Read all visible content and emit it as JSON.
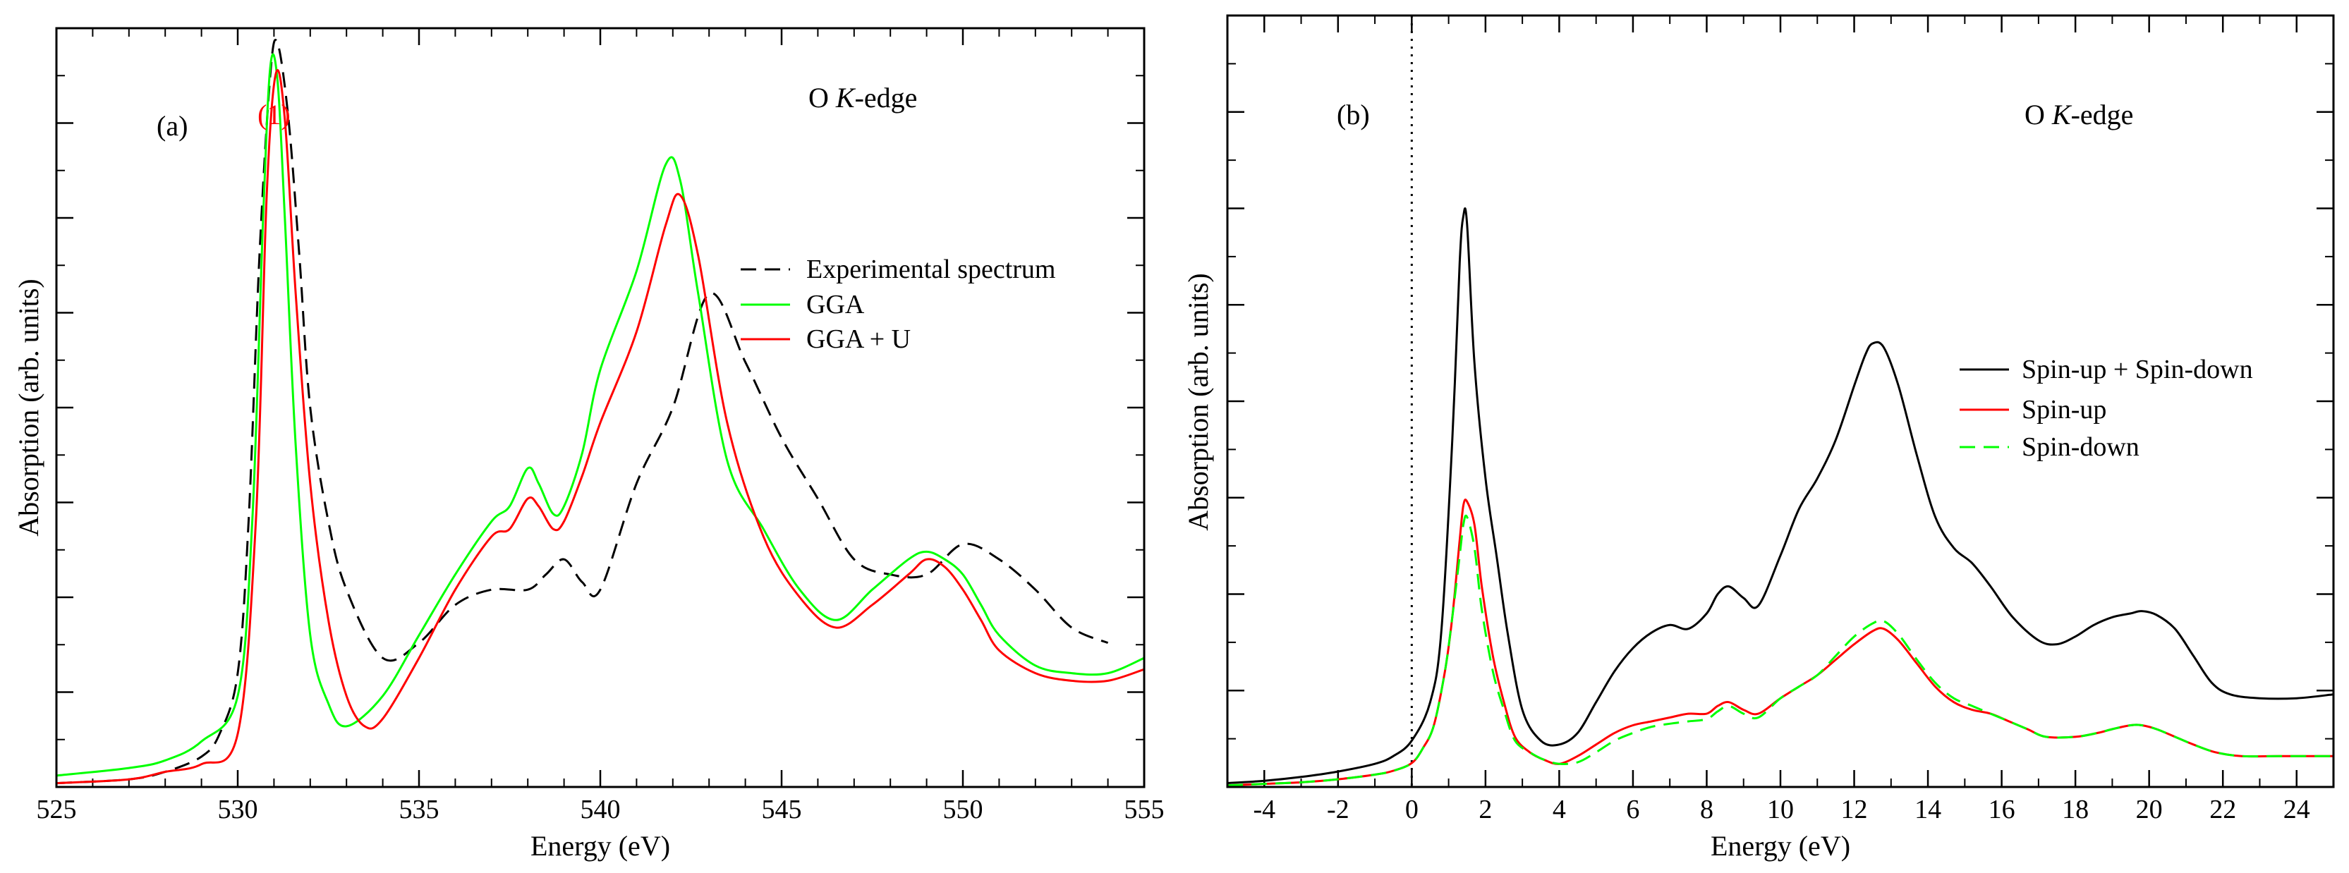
{
  "chart_data": [
    {
      "type": "line",
      "panel_label": "(a)",
      "annotation": "O K-edge",
      "annotation_parts": [
        "O ",
        "K",
        "-edge"
      ],
      "peak_label": "(1)",
      "peak_label_x": 531.0,
      "xlabel": "Energy (eV)",
      "ylabel": "Absorption (arb. units)",
      "xlim": [
        525,
        555
      ],
      "ylim": [
        0,
        100
      ],
      "x_ticks": [
        525,
        530,
        535,
        540,
        545,
        550,
        555
      ],
      "x_tick_labels": [
        "525",
        "530",
        "535",
        "540",
        "545",
        "550",
        "555"
      ],
      "y_tick_labels": [],
      "legend_position": "upper-right",
      "colors": {
        "peak_label": "#ff0000"
      },
      "series": [
        {
          "name": "Experimental spectrum",
          "color": "#000000",
          "dash": "dashed",
          "x": [
            525,
            527,
            528,
            529,
            529.5,
            530,
            530.3,
            530.6,
            530.9,
            531.1,
            531.4,
            531.7,
            532,
            532.5,
            533,
            534,
            535,
            536,
            537,
            538,
            538.5,
            539,
            539.5,
            540,
            541,
            542,
            543,
            544,
            545,
            546,
            547,
            548,
            549,
            550,
            551,
            552,
            553,
            554
          ],
          "y": [
            0.5,
            1,
            2,
            4,
            7,
            15,
            35,
            70,
            94,
            98,
            88,
            70,
            50,
            35,
            26,
            17,
            19,
            24,
            26,
            26,
            28,
            30,
            27,
            26,
            40,
            50,
            65,
            56,
            46,
            38,
            30,
            28,
            28,
            32,
            30,
            26,
            21,
            19
          ]
        },
        {
          "name": "GGA",
          "color": "#00ff00",
          "dash": "solid",
          "x": [
            525,
            527,
            528,
            529,
            530,
            530.4,
            530.7,
            530.9,
            531.1,
            531.3,
            531.6,
            532,
            532.5,
            533,
            534,
            535,
            536,
            537,
            537.5,
            538,
            538.3,
            538.7,
            539,
            539.5,
            540,
            541,
            541.8,
            542.2,
            542.7,
            543.5,
            544.5,
            545.5,
            546.5,
            547.5,
            548.5,
            549,
            549.5,
            550,
            550.5,
            551,
            552,
            553,
            554,
            555
          ],
          "y": [
            1.5,
            2.5,
            3.5,
            6,
            12,
            35,
            75,
            95,
            93,
            75,
            45,
            20,
            11,
            8,
            12,
            20,
            28,
            35,
            37,
            42,
            40,
            36,
            37,
            44,
            55,
            68,
            82,
            80,
            65,
            43,
            34,
            26,
            22,
            26,
            30,
            31,
            30,
            28,
            24,
            20,
            16,
            15,
            15,
            17
          ]
        },
        {
          "name": "GGA + U",
          "color": "#ff0000",
          "dash": "solid",
          "x": [
            525,
            527,
            528,
            529,
            530,
            530.5,
            530.8,
            531.05,
            531.3,
            531.6,
            532,
            532.5,
            533,
            533.5,
            534,
            535,
            536,
            537,
            537.5,
            538,
            538.3,
            538.7,
            539,
            539.5,
            540,
            541,
            541.8,
            542.2,
            542.7,
            543.5,
            544.5,
            545.5,
            546.5,
            547.5,
            548.5,
            549,
            549.5,
            550,
            550.5,
            551,
            552,
            553,
            554,
            555
          ],
          "y": [
            0.5,
            1,
            2,
            3,
            7,
            35,
            78,
            94,
            88,
            65,
            40,
            22,
            12,
            8,
            9,
            17,
            26,
            33,
            34,
            38,
            37,
            34,
            35,
            41,
            48,
            60,
            74,
            78,
            70,
            48,
            33,
            25,
            21,
            24,
            28,
            30,
            29,
            26,
            22,
            18,
            15,
            14,
            14,
            15.5
          ]
        }
      ]
    },
    {
      "type": "line",
      "panel_label": "(b)",
      "annotation": "O K-edge",
      "annotation_parts": [
        "O ",
        "K",
        "-edge"
      ],
      "xlabel": "Energy (eV)",
      "ylabel": "Absorption (arb. units)",
      "xlim": [
        -5,
        25
      ],
      "ylim": [
        0,
        100
      ],
      "x_ticks": [
        -4,
        -2,
        0,
        2,
        4,
        6,
        8,
        10,
        12,
        14,
        16,
        18,
        20,
        22,
        24
      ],
      "x_tick_labels": [
        "-4",
        "-2",
        "0",
        "2",
        "4",
        "6",
        "8",
        "10",
        "12",
        "14",
        "16",
        "18",
        "20",
        "22",
        "24"
      ],
      "y_tick_labels": [],
      "fermi_level_x": 0,
      "legend_position": "right",
      "series": [
        {
          "name": "Spin-up + Spin-down",
          "color": "#000000",
          "dash": "solid",
          "x": [
            -5,
            -4,
            -3,
            -2,
            -1,
            -0.5,
            0,
            0.5,
            0.8,
            1.1,
            1.3,
            1.4,
            1.5,
            1.7,
            2.0,
            2.3,
            2.6,
            3.0,
            3.5,
            4.0,
            4.5,
            5,
            5.5,
            6,
            6.5,
            7,
            7.5,
            8,
            8.3,
            8.6,
            9,
            9.4,
            10,
            10.5,
            11,
            11.5,
            12,
            12.3,
            12.5,
            12.8,
            13.2,
            13.7,
            14.2,
            14.7,
            15.2,
            15.7,
            16.3,
            17,
            17.5,
            18,
            18.5,
            19,
            19.5,
            19.8,
            20.2,
            20.7,
            21.2,
            21.7,
            22.2,
            23,
            24,
            25
          ],
          "y": [
            0.5,
            0.8,
            1.3,
            2,
            3,
            4,
            6,
            11,
            20,
            45,
            68,
            74,
            73,
            55,
            40,
            30,
            20,
            10,
            6,
            5.5,
            7,
            11,
            15,
            18,
            20,
            21,
            20.5,
            22.5,
            25,
            26,
            24.5,
            23.5,
            30,
            36,
            40,
            45,
            52,
            56,
            57.5,
            57,
            52,
            43,
            35,
            31,
            29,
            26,
            22,
            19,
            18.5,
            19.5,
            21,
            22,
            22.5,
            22.8,
            22.3,
            20.5,
            17,
            13.5,
            12,
            11.5,
            11.5,
            12
          ]
        },
        {
          "name": "Spin-up",
          "color": "#ff0000",
          "dash": "solid",
          "x": [
            -5,
            -4,
            -3,
            -2,
            -1,
            -0.5,
            0,
            0.3,
            0.6,
            0.9,
            1.1,
            1.3,
            1.4,
            1.5,
            1.7,
            1.9,
            2.2,
            2.5,
            2.8,
            3.2,
            3.6,
            4,
            4.5,
            5,
            5.5,
            6,
            6.5,
            7,
            7.5,
            8,
            8.3,
            8.6,
            9,
            9.4,
            10,
            10.5,
            11,
            11.5,
            12,
            12.5,
            12.8,
            13.2,
            13.7,
            14.2,
            14.7,
            15.2,
            15.7,
            16.2,
            16.7,
            17.2,
            18,
            18.6,
            19,
            19.5,
            19.8,
            20.2,
            20.7,
            21.2,
            21.8,
            22.5,
            23.5,
            25
          ],
          "y": [
            0.2,
            0.4,
            0.6,
            1,
            1.6,
            2.1,
            3.1,
            5,
            8,
            15,
            22,
            32,
            36.5,
            37,
            34,
            26,
            17,
            11,
            6.5,
            4.5,
            3.5,
            3,
            4,
            5.5,
            7,
            8,
            8.5,
            9,
            9.5,
            9.5,
            10.5,
            11,
            10,
            9.5,
            11.5,
            13,
            14.5,
            16.5,
            18.5,
            20.2,
            20.5,
            19,
            16,
            13,
            11,
            10,
            9.5,
            8.5,
            7.5,
            6.5,
            6.5,
            7,
            7.5,
            8,
            8,
            7.5,
            6.5,
            5.5,
            4.5,
            4,
            4,
            4
          ]
        },
        {
          "name": "Spin-down",
          "color": "#00ff00",
          "dash": "dashed",
          "x": [
            -5,
            -4,
            -3,
            -2,
            -1,
            -0.5,
            0,
            0.3,
            0.6,
            0.9,
            1.1,
            1.3,
            1.4,
            1.5,
            1.7,
            1.9,
            2.2,
            2.5,
            2.8,
            3.2,
            3.6,
            4,
            4.5,
            5,
            5.5,
            6,
            6.5,
            7,
            7.5,
            8,
            8.3,
            8.6,
            9,
            9.4,
            10,
            10.5,
            11,
            11.5,
            12,
            12.5,
            12.8,
            13.2,
            13.7,
            14.2,
            14.7,
            15.2,
            15.7,
            16.2,
            16.7,
            17.2,
            18,
            18.6,
            19,
            19.5,
            19.8,
            20.2,
            20.7,
            21.2,
            21.8,
            22.5,
            23.5,
            25
          ],
          "y": [
            0.2,
            0.4,
            0.6,
            1,
            1.6,
            2.1,
            3.1,
            5,
            8,
            15,
            22,
            30,
            34,
            35,
            31,
            23,
            15,
            10,
            6,
            4.5,
            3.5,
            3,
            3.2,
            4.5,
            6,
            7,
            7.8,
            8.2,
            8.5,
            8.8,
            9.8,
            10.5,
            9.5,
            9,
            11.5,
            13,
            14.5,
            17,
            19.5,
            21.2,
            21.5,
            19.8,
            16.5,
            13.5,
            11.5,
            10.5,
            9.5,
            8.5,
            7.5,
            6.5,
            6.5,
            7,
            7.5,
            8,
            8,
            7.5,
            6.5,
            5.5,
            4.5,
            4,
            4,
            4
          ]
        }
      ]
    }
  ]
}
